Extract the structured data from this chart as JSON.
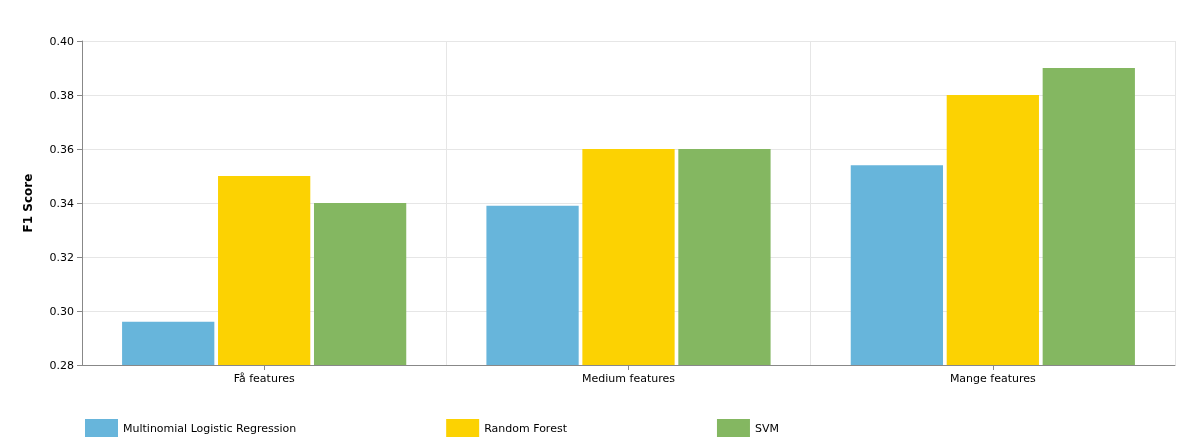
{
  "chart_data": {
    "type": "bar",
    "ylabel": "F1 Score",
    "categories": [
      "Få features",
      "Medium features",
      "Mange features"
    ],
    "series": [
      {
        "name": "Multinomial Logistic Regression",
        "color": "#67b5db",
        "values": [
          0.296,
          0.339,
          0.354
        ]
      },
      {
        "name": "Random Forest",
        "color": "#fcd202",
        "values": [
          0.35,
          0.36,
          0.38
        ]
      },
      {
        "name": "SVM",
        "color": "#84b761",
        "values": [
          0.34,
          0.36,
          0.39
        ]
      }
    ],
    "ylim": [
      0.28,
      0.4
    ],
    "yticks": [
      0.28,
      {
        "value": 0.3,
        "label": "0.30"
      },
      0.32,
      0.34,
      0.36,
      0.38,
      {
        "value": 0.4,
        "label": "0.40"
      }
    ],
    "grid": true,
    "legend": "bottom left"
  }
}
